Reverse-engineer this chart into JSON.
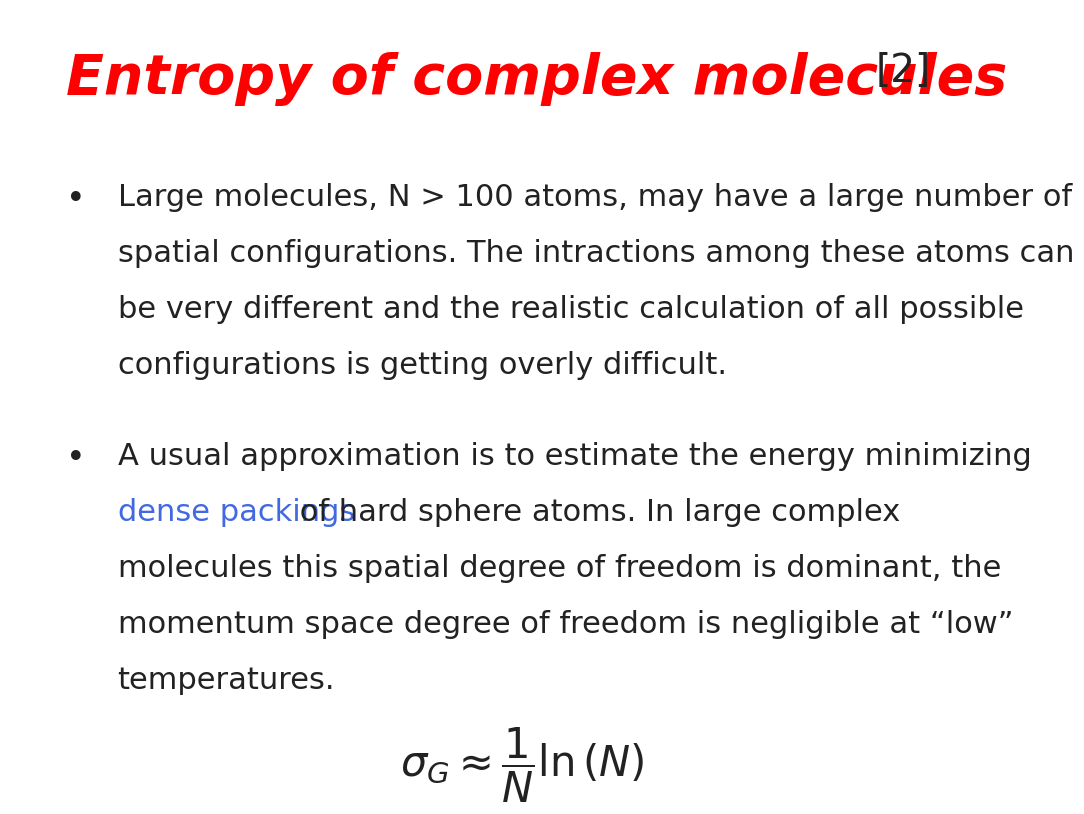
{
  "title": "Entropy of complex molecules",
  "title_color": "#FF0000",
  "title_fontsize": 40,
  "ref_text": "[2]",
  "ref_color": "#222222",
  "ref_fontsize": 28,
  "background_color": "#FFFFFF",
  "bullet1_lines": [
    "Large molecules, N > 100 atoms, may have a large number of",
    "spatial configurations. The intractions among these atoms can",
    "be very different and the realistic calculation of all possible",
    "configurations is getting overly difficult."
  ],
  "bullet2_line1": "A usual approximation is to estimate the energy minimizing",
  "bullet2_highlighted": "dense packings",
  "bullet2_highlight_color": "#4169E1",
  "bullet2_lines_rest": [
    " of hard sphere atoms. In large complex",
    "molecules this spatial degree of freedom is dominant, the",
    "momentum space degree of freedom is negligible at “low”",
    "temperatures."
  ],
  "formula": "$\\sigma_G \\approx \\dfrac{1}{N} \\ln \\left( N \\right)$",
  "text_color": "#222222",
  "text_fontsize": 22,
  "bullet_fontsize": 22
}
